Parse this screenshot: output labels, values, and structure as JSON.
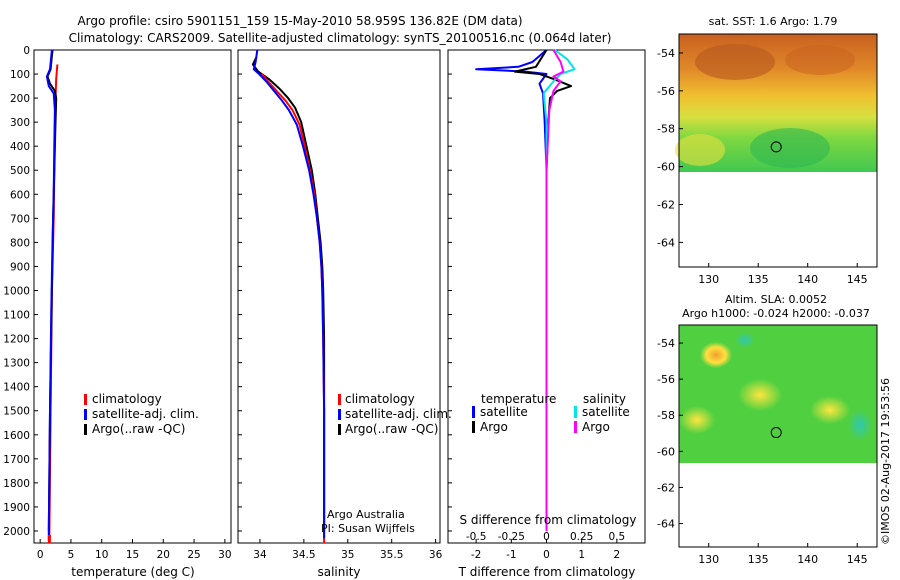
{
  "header": {
    "line1": "Argo profile: csiro 5901151_159 15-May-2010 58.959S 136.82E (DM data)",
    "line2": "Climatology: CARS2009. Satellite-adjusted climatology: synTS_20100516.nc (0.064d later)"
  },
  "stamp": "©IMOS 02-Aug-2017 19:53:56",
  "chart_data": [
    {
      "id": "temperature",
      "type": "line",
      "xlabel": "temperature (deg C)",
      "xlim": [
        -1,
        31
      ],
      "xticks": [
        "0",
        "5",
        "10",
        "15",
        "20",
        "25",
        "30"
      ],
      "ylim": [
        2050,
        0
      ],
      "yticks": [
        "0",
        "100",
        "200",
        "300",
        "400",
        "500",
        "600",
        "700",
        "800",
        "900",
        "1000",
        "1100",
        "1200",
        "1300",
        "1400",
        "1500",
        "1600",
        "1700",
        "1800",
        "1900",
        "2000"
      ],
      "legend": [
        "climatology",
        "satellite-adj. clim.",
        "Argo(..raw -QC)"
      ],
      "colors": {
        "climatology": "#ff0000",
        "satellite": "#0000ff",
        "argo": "#000000"
      },
      "series": [
        {
          "name": "climatology",
          "points": [
            [
              2.8,
              60
            ],
            [
              2.6,
              120
            ],
            [
              2.5,
              200
            ],
            [
              2.4,
              300
            ],
            [
              2.3,
              500
            ],
            [
              2.2,
              700
            ],
            [
              1.9,
              1000
            ],
            [
              1.7,
              1500
            ],
            [
              1.5,
              2000
            ],
            [
              1.5,
              2050
            ]
          ]
        },
        {
          "name": "Argo(..raw -QC)",
          "points": [
            [
              2.0,
              0
            ],
            [
              1.7,
              80
            ],
            [
              1.2,
              110
            ],
            [
              1.6,
              140
            ],
            [
              2.4,
              170
            ],
            [
              2.6,
              200
            ],
            [
              2.5,
              300
            ],
            [
              2.3,
              500
            ],
            [
              2.1,
              700
            ],
            [
              1.9,
              1000
            ],
            [
              1.6,
              1500
            ],
            [
              1.4,
              2000
            ]
          ]
        },
        {
          "name": "satellite-adj. clim.",
          "points": [
            [
              1.9,
              0
            ],
            [
              1.6,
              80
            ],
            [
              1.1,
              110
            ],
            [
              1.4,
              150
            ],
            [
              2.2,
              180
            ],
            [
              2.4,
              250
            ],
            [
              2.3,
              400
            ],
            [
              2.2,
              600
            ],
            [
              2.0,
              800
            ],
            [
              1.8,
              1100
            ],
            [
              1.6,
              1500
            ],
            [
              1.4,
              2000
            ],
            [
              1.4,
              2040
            ]
          ]
        }
      ]
    },
    {
      "id": "salinity",
      "type": "line",
      "xlabel": "salinity",
      "xlim": [
        33.75,
        36.05
      ],
      "xticks": [
        "34",
        "34.5",
        "35",
        "35.5",
        "36"
      ],
      "ylim": [
        2050,
        0
      ],
      "legend": [
        "climatology",
        "satellite-adj. clim.",
        "Argo(..raw -QC)"
      ],
      "note": [
        "Argo Australia",
        "PI: Susan Wijffels"
      ],
      "series": [
        {
          "name": "Argo(..raw -QC)",
          "points": [
            [
              33.96,
              30
            ],
            [
              33.92,
              60
            ],
            [
              33.98,
              90
            ],
            [
              34.1,
              120
            ],
            [
              34.22,
              160
            ],
            [
              34.32,
              200
            ],
            [
              34.4,
              240
            ],
            [
              34.47,
              300
            ],
            [
              34.53,
              400
            ],
            [
              34.59,
              500
            ],
            [
              34.63,
              600
            ],
            [
              34.66,
              700
            ],
            [
              34.69,
              800
            ],
            [
              34.71,
              900
            ],
            [
              34.72,
              1000
            ],
            [
              34.73,
              1200
            ],
            [
              34.73,
              1500
            ],
            [
              34.73,
              2000
            ]
          ]
        },
        {
          "name": "climatology",
          "points": [
            [
              34.02,
              100
            ],
            [
              34.09,
              130
            ],
            [
              34.19,
              170
            ],
            [
              34.29,
              210
            ],
            [
              34.37,
              250
            ],
            [
              34.45,
              310
            ],
            [
              34.51,
              400
            ],
            [
              34.57,
              500
            ],
            [
              34.62,
              600
            ],
            [
              34.65,
              700
            ],
            [
              34.68,
              800
            ],
            [
              34.7,
              900
            ],
            [
              34.71,
              1000
            ],
            [
              34.72,
              1200
            ],
            [
              34.73,
              1500
            ],
            [
              34.73,
              2050
            ]
          ]
        },
        {
          "name": "satellite-adj. clim.",
          "points": [
            [
              33.97,
              0
            ],
            [
              33.95,
              50
            ],
            [
              33.93,
              80
            ],
            [
              33.99,
              100
            ],
            [
              34.07,
              130
            ],
            [
              34.16,
              170
            ],
            [
              34.25,
              210
            ],
            [
              34.33,
              250
            ],
            [
              34.42,
              310
            ],
            [
              34.49,
              400
            ],
            [
              34.56,
              500
            ],
            [
              34.61,
              600
            ],
            [
              34.65,
              700
            ],
            [
              34.68,
              800
            ],
            [
              34.7,
              900
            ],
            [
              34.71,
              1000
            ],
            [
              34.72,
              1200
            ],
            [
              34.73,
              1500
            ],
            [
              34.73,
              2030
            ]
          ]
        }
      ]
    },
    {
      "id": "differences",
      "type": "line",
      "xlabel": "T difference from climatology",
      "xlabel2": "S difference from climatology",
      "xlim": [
        -2.8,
        2.8
      ],
      "xticks": [
        "-2",
        "-1",
        "0",
        "1",
        "2"
      ],
      "xticks2": [
        "-0.5",
        "-0.25",
        "0",
        "0.25",
        "0.5"
      ],
      "ylim": [
        2050,
        0
      ],
      "legend": {
        "temperature": "temperature",
        "salinity": "salinity",
        "satellite": "satellite",
        "argo": "Argo"
      },
      "colors": {
        "t_sat": "#0000ff",
        "t_argo": "#000000",
        "s_sat": "#00e5e5",
        "s_argo": "#ff00ff"
      },
      "series": [
        {
          "name": "T satellite",
          "points": [
            [
              0,
              0
            ],
            [
              -0.4,
              50
            ],
            [
              -0.8,
              70
            ],
            [
              -2.0,
              80
            ],
            [
              -0.6,
              90
            ],
            [
              0,
              100
            ],
            [
              -0.2,
              140
            ],
            [
              -0.1,
              180
            ],
            [
              -0.05,
              300
            ],
            [
              0,
              500
            ],
            [
              0,
              2000
            ]
          ]
        },
        {
          "name": "T Argo",
          "points": [
            [
              0,
              0
            ],
            [
              -0.3,
              70
            ],
            [
              -0.9,
              90
            ],
            [
              -0.2,
              100
            ],
            [
              0.2,
              120
            ],
            [
              0.7,
              150
            ],
            [
              0.3,
              170
            ],
            [
              0.1,
              200
            ],
            [
              0.05,
              300
            ],
            [
              0,
              500
            ],
            [
              0,
              2000
            ]
          ]
        },
        {
          "name": "S satellite",
          "points": [
            [
              0.06,
              0
            ],
            [
              0.15,
              40
            ],
            [
              0.2,
              80
            ],
            [
              0.1,
              100
            ],
            [
              0.05,
              130
            ],
            [
              -0.02,
              180
            ],
            [
              0,
              300
            ],
            [
              0,
              500
            ],
            [
              0,
              2000
            ]
          ]
        },
        {
          "name": "S Argo",
          "points": [
            [
              0.05,
              0
            ],
            [
              0.1,
              50
            ],
            [
              0.12,
              90
            ],
            [
              0.05,
              110
            ],
            [
              0.1,
              130
            ],
            [
              0.05,
              170
            ],
            [
              0.02,
              250
            ],
            [
              0,
              500
            ],
            [
              0,
              2000
            ]
          ]
        }
      ]
    },
    {
      "id": "sst-map",
      "type": "heatmap",
      "title": "sat. SST: 1.6  Argo: 1.79",
      "xlim": [
        127,
        147
      ],
      "ylim": [
        -65.3,
        -53
      ],
      "xticks": [
        "130",
        "135",
        "140",
        "145"
      ],
      "yticks": [
        "-54",
        "-56",
        "-58",
        "-60",
        "-62",
        "-64"
      ],
      "data_lat_range": [
        -60,
        -53
      ],
      "profile_location": {
        "lon": 136.82,
        "lat": -58.959
      }
    },
    {
      "id": "sla-map",
      "type": "heatmap",
      "title": "Altim. SLA: 0.0052",
      "subtitle": "Argo h1000: -0.024  h2000: -0.037",
      "xlim": [
        127,
        147
      ],
      "ylim": [
        -65.3,
        -53
      ],
      "xticks": [
        "130",
        "135",
        "140",
        "145"
      ],
      "yticks": [
        "-54",
        "-56",
        "-58",
        "-60",
        "-62",
        "-64"
      ],
      "data_lat_range": [
        -60,
        -53
      ],
      "profile_location": {
        "lon": 136.82,
        "lat": -58.959
      }
    }
  ]
}
